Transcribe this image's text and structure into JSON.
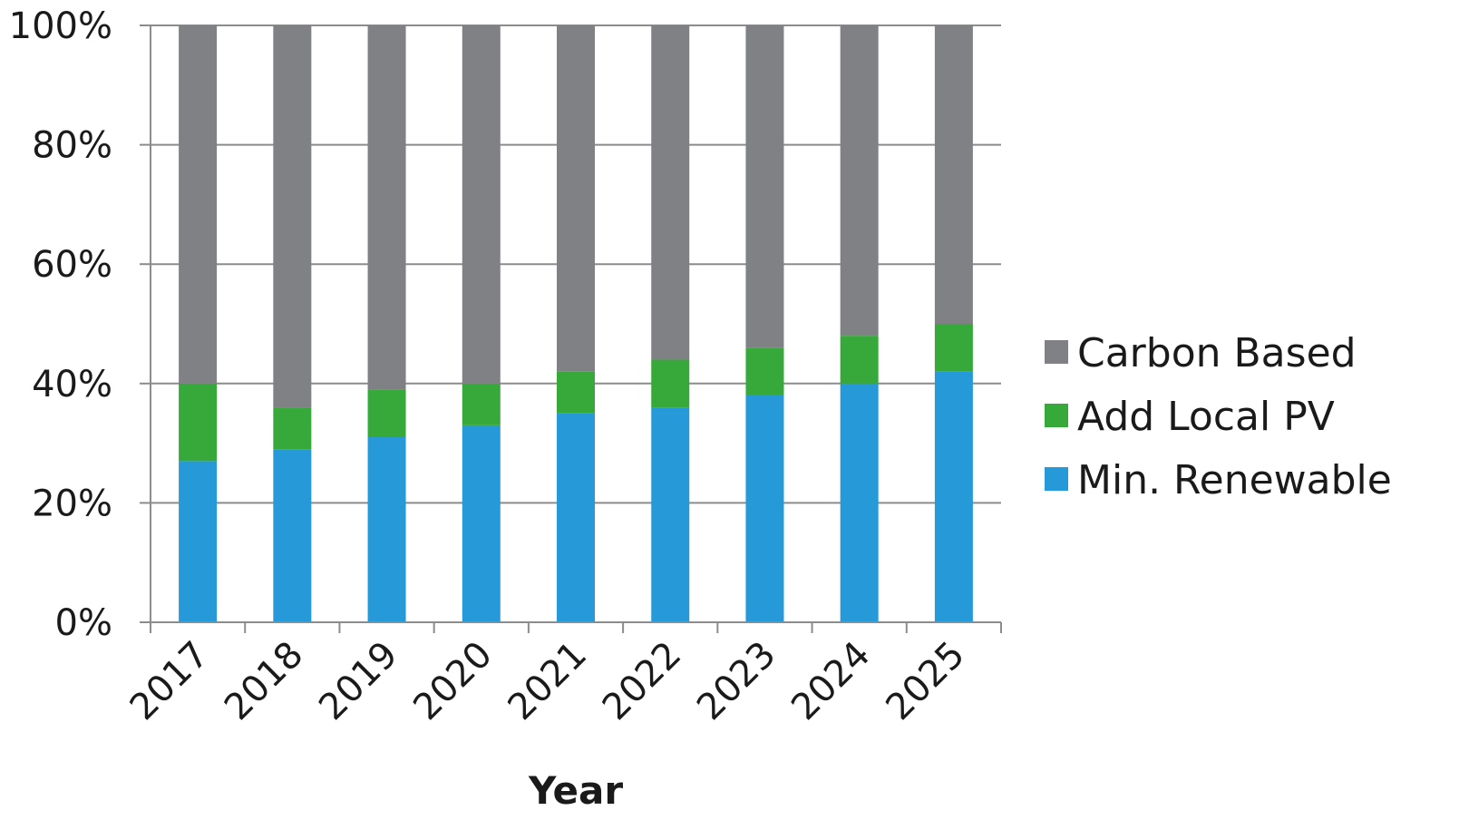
{
  "chart_data": {
    "type": "bar",
    "stacked": true,
    "percent_stacked": true,
    "xlabel": "Year",
    "ylabel": "",
    "ylim": [
      0,
      100
    ],
    "yticks": [
      "0%",
      "20%",
      "40%",
      "60%",
      "80%",
      "100%"
    ],
    "ytick_values": [
      0,
      20,
      40,
      60,
      80,
      100
    ],
    "grid": true,
    "legend_position": "right",
    "categories": [
      "2017",
      "2018",
      "2019",
      "2020",
      "2021",
      "2022",
      "2023",
      "2024",
      "2025"
    ],
    "series": [
      {
        "name": "Min. Renewable",
        "color": "#2699d9",
        "values": [
          27,
          29,
          31,
          33,
          35,
          36,
          38,
          40,
          42
        ]
      },
      {
        "name": "Add Local PV",
        "color": "#36a93a",
        "values": [
          13,
          7,
          8,
          7,
          7,
          8,
          8,
          8,
          8
        ]
      },
      {
        "name": "Carbon Based",
        "color": "#808185",
        "values": [
          60,
          64,
          61,
          60,
          58,
          56,
          54,
          52,
          50
        ]
      }
    ],
    "legend_order": [
      "Carbon Based",
      "Add Local PV",
      "Min. Renewable"
    ]
  }
}
